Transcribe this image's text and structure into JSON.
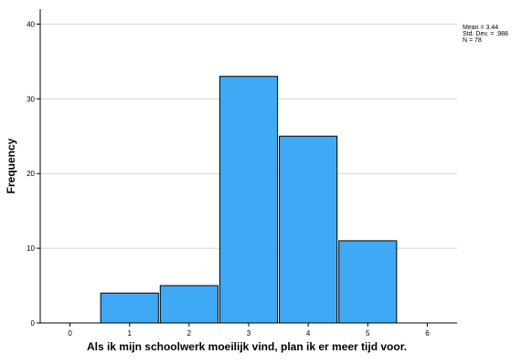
{
  "chart_data": {
    "type": "bar",
    "title": "",
    "xlabel": "Als ik mijn schoolwerk moeilijk vind, plan ik er meer tijd voor.",
    "ylabel": "Frequency",
    "x_ticks": [
      "0",
      "1",
      "2",
      "3",
      "4",
      "5",
      "6"
    ],
    "y_ticks": [
      "0",
      "10",
      "20",
      "30",
      "40"
    ],
    "xlim": [
      -0.5,
      6.5
    ],
    "ylim": [
      0,
      42
    ],
    "categories": [
      1,
      2,
      3,
      4,
      5
    ],
    "values": [
      4,
      5,
      33,
      25,
      11
    ],
    "grid": "horizontal",
    "bar_color": "#3FA9F5",
    "bar_edge_color": "#000000",
    "stats": [
      "Mean = 3.44",
      "Std. Dev. = .988",
      "N = 78"
    ],
    "stats_position": "top-right"
  }
}
